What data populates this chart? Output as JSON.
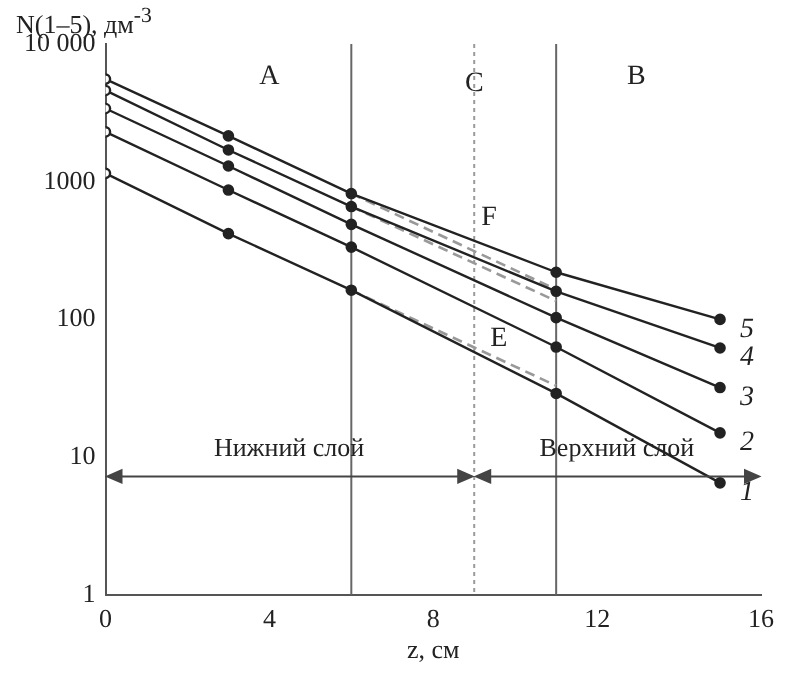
{
  "chart_data": {
    "type": "line",
    "xlabel": "z, см",
    "ylabel": "N(1–5), дм$^{-3}$",
    "x": [
      0,
      3,
      6,
      11,
      15
    ],
    "series": [
      {
        "name": "5",
        "color": "#222222",
        "values": [
          5560,
          2150,
          820,
          220,
          100
        ]
      },
      {
        "name": "4",
        "color": "#222222",
        "values": [
          4600,
          1700,
          660,
          160,
          62
        ]
      },
      {
        "name": "3",
        "color": "#222222",
        "values": [
          3400,
          1300,
          490,
          103,
          32
        ]
      },
      {
        "name": "2",
        "color": "#222222",
        "values": [
          2300,
          870,
          335,
          63,
          15
        ]
      },
      {
        "name": "1",
        "color": "#222222",
        "values": [
          1150,
          420,
          163,
          29,
          6.5
        ]
      },
      {
        "color": "#999999",
        "values": [
          null,
          null,
          820,
          165,
          null
        ],
        "line_style": "dashed",
        "marker": "none"
      },
      {
        "color": "#999999",
        "values": [
          null,
          null,
          660,
          136,
          null
        ],
        "line_style": "dashed",
        "marker": "none"
      },
      {
        "color": "#999999",
        "values": [
          null,
          null,
          163,
          33,
          null
        ],
        "line_style": "dashed",
        "marker": "none"
      }
    ],
    "log": "y",
    "xlim": [
      0,
      16
    ],
    "xticks": [
      0,
      4,
      8,
      12,
      16
    ],
    "ylim": [
      1,
      10000
    ],
    "yticks": [
      1,
      10,
      100,
      1000,
      {
        "value": 10000,
        "label": "10 000"
      }
    ],
    "grid": false,
    "legend": false,
    "marker": "circle",
    "line_style": "solid",
    "ref_lines": [
      {
        "axis": "x",
        "value": 6,
        "color": "#666666",
        "line_style": "solid"
      },
      {
        "axis": "x",
        "value": 9,
        "label": "C",
        "color": "#999999",
        "line_style": "dotted"
      },
      {
        "axis": "x",
        "value": 11,
        "color": "#666666",
        "line_style": "solid"
      }
    ],
    "annotations": [
      "A",
      "B",
      "F",
      "E",
      "Нижний слой",
      "Верхний слой"
    ]
  }
}
